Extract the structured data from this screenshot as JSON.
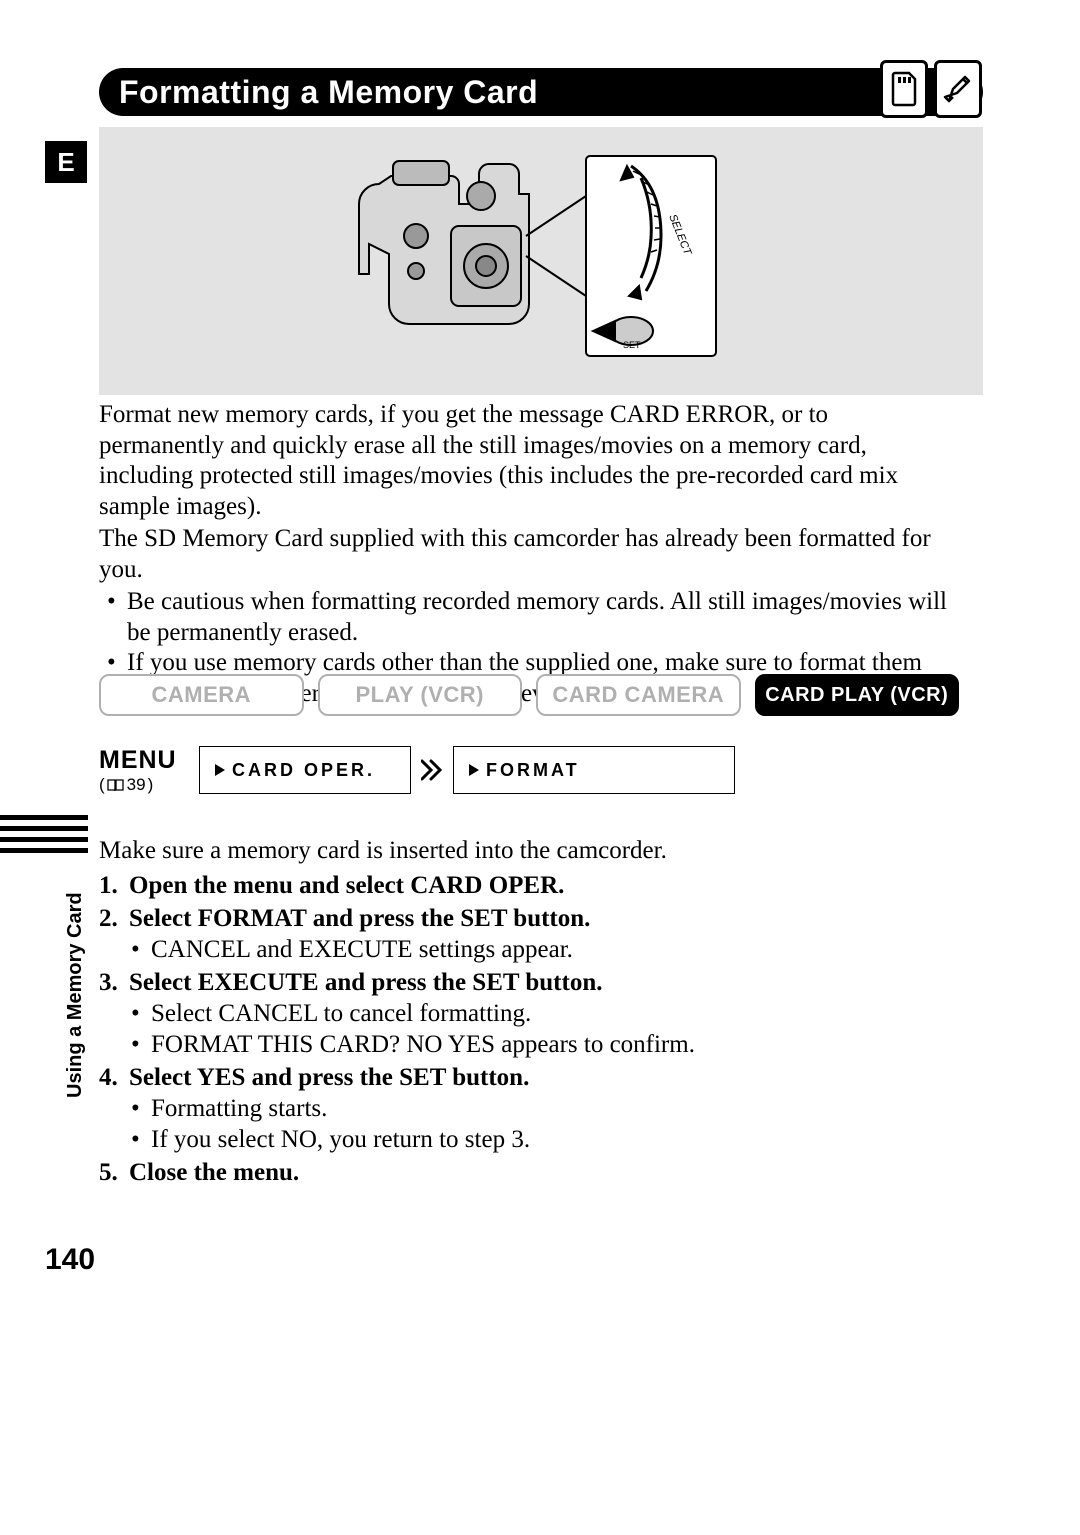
{
  "title": "Formatting a Memory Card",
  "e_tab": "E",
  "side_label": "Using a Memory Card",
  "page_number": "140",
  "intro": {
    "p1": "Format new memory cards, if you get the message CARD ERROR, or to permanently and quickly erase all the still images/movies on a memory card, including protected still images/movies (this includes the pre-recorded card mix sample images).",
    "p2": "The SD Memory Card supplied with this camcorder has already been formatted for you.",
    "bullets": [
      "Be cautious when formatting recorded memory cards. All still images/movies will be permanently erased.",
      "If you use memory cards other than the supplied one, make sure to format them with the camcorder, not a PC or other device."
    ]
  },
  "modes": {
    "items": [
      "CAMERA",
      "PLAY (VCR)",
      "CARD CAMERA",
      "CARD PLAY (VCR)"
    ],
    "active_index": 3
  },
  "menu": {
    "label": "MENU",
    "ref": "39",
    "card_oper": "CARD OPER.",
    "format": "FORMAT"
  },
  "instructions": {
    "lead": "Make sure a memory card is inserted into the camcorder.",
    "steps": [
      {
        "n": "1.",
        "head": "Open the menu and select CARD OPER.",
        "sub": []
      },
      {
        "n": "2.",
        "head": "Select FORMAT and press the SET button.",
        "sub": [
          "CANCEL and EXECUTE settings appear."
        ]
      },
      {
        "n": "3.",
        "head": "Select EXECUTE and press the SET button.",
        "sub": [
          "Select CANCEL to cancel formatting.",
          "FORMAT THIS CARD? NO YES appears to confirm."
        ]
      },
      {
        "n": "4.",
        "head": "Select YES and press the SET button.",
        "sub": [
          "Formatting starts.",
          "If you select NO, you return to step 3."
        ]
      },
      {
        "n": "5.",
        "head": "Close the menu.",
        "sub": []
      }
    ]
  }
}
